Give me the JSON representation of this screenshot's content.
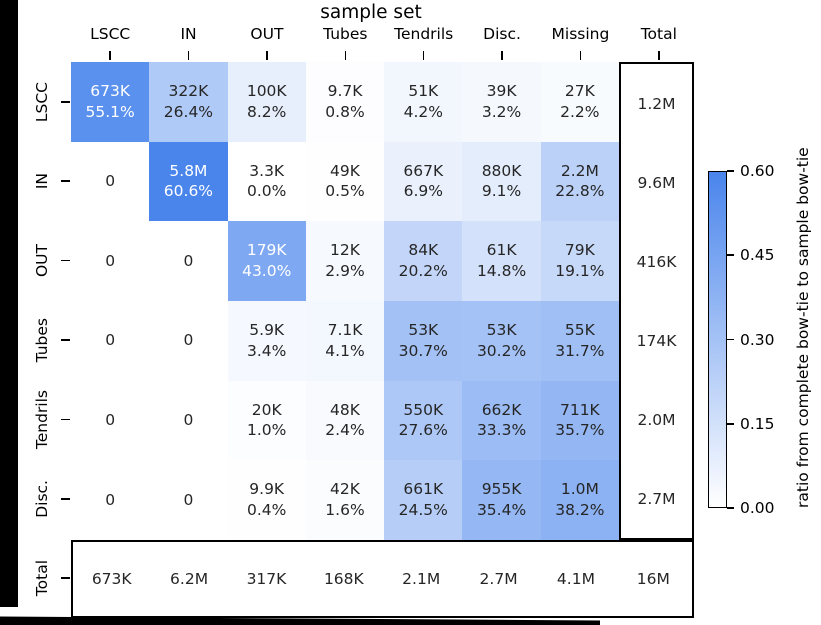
{
  "figure": {
    "colors": {
      "heat_max_blue": "#4a85ec",
      "heat_min_white": "#ffffff",
      "cell_text_dark": "#262626",
      "cell_text_light": "#ffffff",
      "box_border": "#000000"
    },
    "white_text_ratio_threshold": 0.4
  },
  "chart_data": {
    "type": "heatmap",
    "title": "sample set",
    "col_labels": [
      "LSCC",
      "IN",
      "OUT",
      "Tubes",
      "Tendrils",
      "Disc.",
      "Missing",
      "Total"
    ],
    "row_labels": [
      "LSCC",
      "IN",
      "OUT",
      "Tubes",
      "Tendrils",
      "Disc.",
      "Total"
    ],
    "vmin": 0.0,
    "vmax": 0.606,
    "rows": [
      {
        "label": "LSCC",
        "total": "1.2M",
        "cells": [
          {
            "count": "673K",
            "pct": "55.1%",
            "ratio": 0.551
          },
          {
            "count": "322K",
            "pct": "26.4%",
            "ratio": 0.264
          },
          {
            "count": "100K",
            "pct": "8.2%",
            "ratio": 0.082
          },
          {
            "count": "9.7K",
            "pct": "0.8%",
            "ratio": 0.008
          },
          {
            "count": "51K",
            "pct": "4.2%",
            "ratio": 0.042
          },
          {
            "count": "39K",
            "pct": "3.2%",
            "ratio": 0.032
          },
          {
            "count": "27K",
            "pct": "2.2%",
            "ratio": 0.022
          }
        ]
      },
      {
        "label": "IN",
        "total": "9.6M",
        "cells": [
          {
            "count": "0",
            "pct": null,
            "ratio": 0
          },
          {
            "count": "5.8M",
            "pct": "60.6%",
            "ratio": 0.606
          },
          {
            "count": "3.3K",
            "pct": "0.0%",
            "ratio": 0.0
          },
          {
            "count": "49K",
            "pct": "0.5%",
            "ratio": 0.005
          },
          {
            "count": "667K",
            "pct": "6.9%",
            "ratio": 0.069
          },
          {
            "count": "880K",
            "pct": "9.1%",
            "ratio": 0.091
          },
          {
            "count": "2.2M",
            "pct": "22.8%",
            "ratio": 0.228
          }
        ]
      },
      {
        "label": "OUT",
        "total": "416K",
        "cells": [
          {
            "count": "0",
            "pct": null,
            "ratio": 0
          },
          {
            "count": "0",
            "pct": null,
            "ratio": 0
          },
          {
            "count": "179K",
            "pct": "43.0%",
            "ratio": 0.43
          },
          {
            "count": "12K",
            "pct": "2.9%",
            "ratio": 0.029
          },
          {
            "count": "84K",
            "pct": "20.2%",
            "ratio": 0.202
          },
          {
            "count": "61K",
            "pct": "14.8%",
            "ratio": 0.148
          },
          {
            "count": "79K",
            "pct": "19.1%",
            "ratio": 0.191
          }
        ]
      },
      {
        "label": "Tubes",
        "total": "174K",
        "cells": [
          {
            "count": "0",
            "pct": null,
            "ratio": 0
          },
          {
            "count": "0",
            "pct": null,
            "ratio": 0
          },
          {
            "count": "5.9K",
            "pct": "3.4%",
            "ratio": 0.034
          },
          {
            "count": "7.1K",
            "pct": "4.1%",
            "ratio": 0.041
          },
          {
            "count": "53K",
            "pct": "30.7%",
            "ratio": 0.307
          },
          {
            "count": "53K",
            "pct": "30.2%",
            "ratio": 0.302
          },
          {
            "count": "55K",
            "pct": "31.7%",
            "ratio": 0.317
          }
        ]
      },
      {
        "label": "Tendrils",
        "total": "2.0M",
        "cells": [
          {
            "count": "0",
            "pct": null,
            "ratio": 0
          },
          {
            "count": "0",
            "pct": null,
            "ratio": 0
          },
          {
            "count": "20K",
            "pct": "1.0%",
            "ratio": 0.01
          },
          {
            "count": "48K",
            "pct": "2.4%",
            "ratio": 0.024
          },
          {
            "count": "550K",
            "pct": "27.6%",
            "ratio": 0.276
          },
          {
            "count": "662K",
            "pct": "33.3%",
            "ratio": 0.333
          },
          {
            "count": "711K",
            "pct": "35.7%",
            "ratio": 0.357
          }
        ]
      },
      {
        "label": "Disc.",
        "total": "2.7M",
        "cells": [
          {
            "count": "0",
            "pct": null,
            "ratio": 0
          },
          {
            "count": "0",
            "pct": null,
            "ratio": 0
          },
          {
            "count": "9.9K",
            "pct": "0.4%",
            "ratio": 0.004
          },
          {
            "count": "42K",
            "pct": "1.6%",
            "ratio": 0.016
          },
          {
            "count": "661K",
            "pct": "24.5%",
            "ratio": 0.245
          },
          {
            "count": "955K",
            "pct": "35.4%",
            "ratio": 0.354
          },
          {
            "count": "1.0M",
            "pct": "38.2%",
            "ratio": 0.382
          }
        ]
      }
    ],
    "totals_row": {
      "label": "Total",
      "values": [
        "673K",
        "6.2M",
        "317K",
        "168K",
        "2.1M",
        "2.7M",
        "4.1M",
        "16M"
      ]
    },
    "colorbar": {
      "label": "ratio from complete bow-tie to sample bow-tie",
      "ticks": [
        "0.60",
        "0.45",
        "0.30",
        "0.15",
        "0.00"
      ],
      "tick_values": [
        0.6,
        0.45,
        0.3,
        0.15,
        0.0
      ],
      "legend_position": "right"
    },
    "grid": false
  }
}
